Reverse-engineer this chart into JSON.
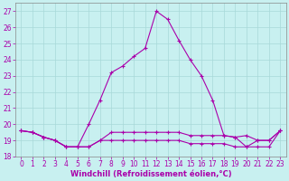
{
  "xlabel": "Windchill (Refroidissement éolien,°C)",
  "x_hours": [
    0,
    1,
    2,
    3,
    4,
    5,
    6,
    7,
    8,
    9,
    10,
    11,
    12,
    13,
    14,
    15,
    16,
    17,
    18,
    19,
    20,
    21,
    22,
    23
  ],
  "main_line": [
    19.6,
    19.5,
    19.2,
    19.0,
    18.6,
    18.6,
    20.0,
    21.5,
    23.2,
    23.6,
    24.2,
    24.7,
    27.0,
    26.5,
    25.2,
    24.0,
    23.0,
    21.5,
    19.3,
    19.2,
    18.6,
    19.0,
    19.0,
    19.6
  ],
  "flat_line1": [
    19.6,
    19.5,
    19.2,
    19.0,
    18.6,
    18.6,
    18.6,
    19.0,
    19.5,
    19.5,
    19.5,
    19.5,
    19.5,
    19.5,
    19.5,
    19.3,
    19.3,
    19.3,
    19.3,
    19.2,
    19.3,
    19.0,
    19.0,
    19.6
  ],
  "flat_line2": [
    19.6,
    19.5,
    19.2,
    19.0,
    18.6,
    18.6,
    18.6,
    19.0,
    19.0,
    19.0,
    19.0,
    19.0,
    19.0,
    19.0,
    19.0,
    18.8,
    18.8,
    18.8,
    18.8,
    18.6,
    18.6,
    18.6,
    18.6,
    19.6
  ],
  "ylim": [
    18.0,
    27.5
  ],
  "xlim": [
    -0.5,
    23.5
  ],
  "yticks": [
    18,
    19,
    20,
    21,
    22,
    23,
    24,
    25,
    26,
    27
  ],
  "xticks": [
    0,
    1,
    2,
    3,
    4,
    5,
    6,
    7,
    8,
    9,
    10,
    11,
    12,
    13,
    14,
    15,
    16,
    17,
    18,
    19,
    20,
    21,
    22,
    23
  ],
  "line_color": "#aa00aa",
  "bg_color": "#c8f0f0",
  "grid_color": "#a8d8d8",
  "spine_color": "#888888",
  "tick_fontsize": 5.5,
  "xlabel_fontsize": 6.0
}
